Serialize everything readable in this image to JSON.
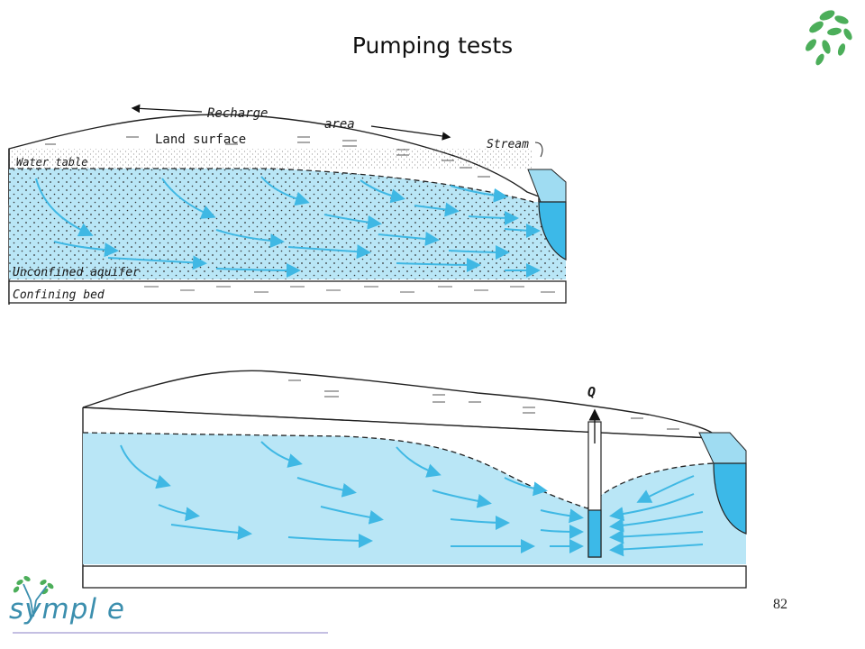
{
  "slide": {
    "title": "Pumping tests",
    "page_number": "82",
    "brand": "sympl e"
  },
  "colors": {
    "aquifer": "#b9e6f6",
    "aquifer_upper": "#caeefa",
    "stream": "#3cb9e8",
    "stream_bank": "#9fdcf2",
    "flow_arrow": "#3fb8e4",
    "brand": "#3c8fae",
    "leaf": "#4cae5a"
  },
  "icons": {
    "leaf_logo": "leaf-branch-icon",
    "brand_logo": "sympl-tree-logo",
    "flow": "arrow-icon"
  },
  "diagram_top": {
    "recharge": "Recharge",
    "area": "area",
    "land_surface": "Land surface",
    "stream": "Stream",
    "water_table": "Water table",
    "unconfined_aquifer": "Unconfined aquifer",
    "confining_bed": "Confining bed"
  },
  "diagram_bottom": {
    "discharge": "Q"
  }
}
